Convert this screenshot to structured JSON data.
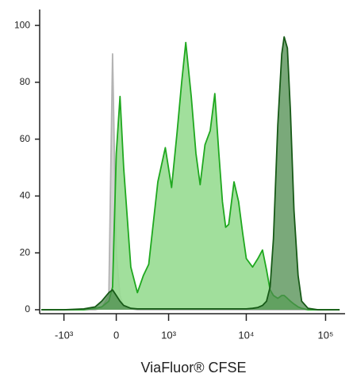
{
  "chart_data": {
    "type": "area",
    "x_label": "ViaFluor® CFSE",
    "xscale": "biexponential",
    "x": [
      -2000,
      -1000,
      -500,
      -300,
      -200,
      -100,
      -50,
      0,
      50,
      100,
      200,
      300,
      400,
      500,
      700,
      900,
      1100,
      1300,
      1500,
      1700,
      2000,
      2300,
      2600,
      3000,
      3500,
      4000,
      4500,
      5000,
      5500,
      6000,
      7000,
      8000,
      9000,
      10000,
      12000,
      14000,
      16000,
      18000,
      20000,
      22000,
      25000,
      28000,
      30000,
      33000,
      36000,
      40000,
      45000,
      50000,
      60000,
      80000,
      100000,
      150000
    ],
    "series": [
      {
        "color": "#b3b3b3",
        "fill": "#cfcfcf",
        "values": [
          0,
          0,
          0,
          0,
          0.5,
          5,
          90,
          20,
          5,
          1,
          0.3,
          0,
          0,
          0,
          0,
          0,
          0,
          0,
          0,
          0,
          0,
          0,
          0,
          0,
          0,
          0,
          0,
          0,
          0,
          0,
          0,
          0,
          0,
          0,
          0,
          0,
          0,
          0,
          0,
          0,
          0,
          0,
          0,
          0,
          0,
          0,
          0,
          0,
          0,
          0,
          0,
          0
        ]
      },
      {
        "color": "#1fa81f",
        "fill": "#97dc91",
        "values": [
          0,
          0,
          0,
          0.5,
          1,
          3,
          8,
          55,
          75,
          50,
          15,
          6,
          12,
          16,
          45,
          57,
          43,
          62,
          80,
          94,
          75,
          55,
          44,
          58,
          63,
          76,
          55,
          38,
          29,
          30,
          45,
          38,
          27,
          18,
          15,
          18,
          21,
          14,
          7,
          5,
          4,
          5,
          5,
          4,
          3,
          2,
          1,
          0.5,
          0,
          0,
          0,
          0
        ]
      },
      {
        "color": "#175a17",
        "fill": "#4d8c4d",
        "values": [
          0,
          0,
          0.3,
          1,
          3,
          6,
          7,
          5,
          3,
          1.5,
          0.5,
          0.3,
          0.3,
          0.3,
          0.3,
          0.3,
          0.3,
          0.3,
          0.3,
          0.3,
          0.3,
          0.3,
          0.3,
          0.3,
          0.3,
          0.3,
          0.3,
          0.3,
          0.3,
          0.3,
          0.3,
          0.3,
          0.3,
          0.3,
          0.5,
          0.8,
          1.5,
          3,
          8,
          25,
          65,
          90,
          96,
          92,
          70,
          35,
          12,
          3,
          0.5,
          0,
          0,
          0
        ]
      }
    ],
    "xlim": [
      -2100,
      176000
    ],
    "xticks": [
      {
        "value": -1000,
        "label": "-10³"
      },
      0,
      {
        "value": 1000,
        "label": "10³"
      },
      {
        "value": 10000,
        "label": "10⁴"
      },
      {
        "value": 100000,
        "label": "10⁵"
      }
    ],
    "ylim": [
      -1.4,
      105.6
    ],
    "yticks": [
      0,
      20,
      40,
      60,
      80,
      100
    ]
  }
}
